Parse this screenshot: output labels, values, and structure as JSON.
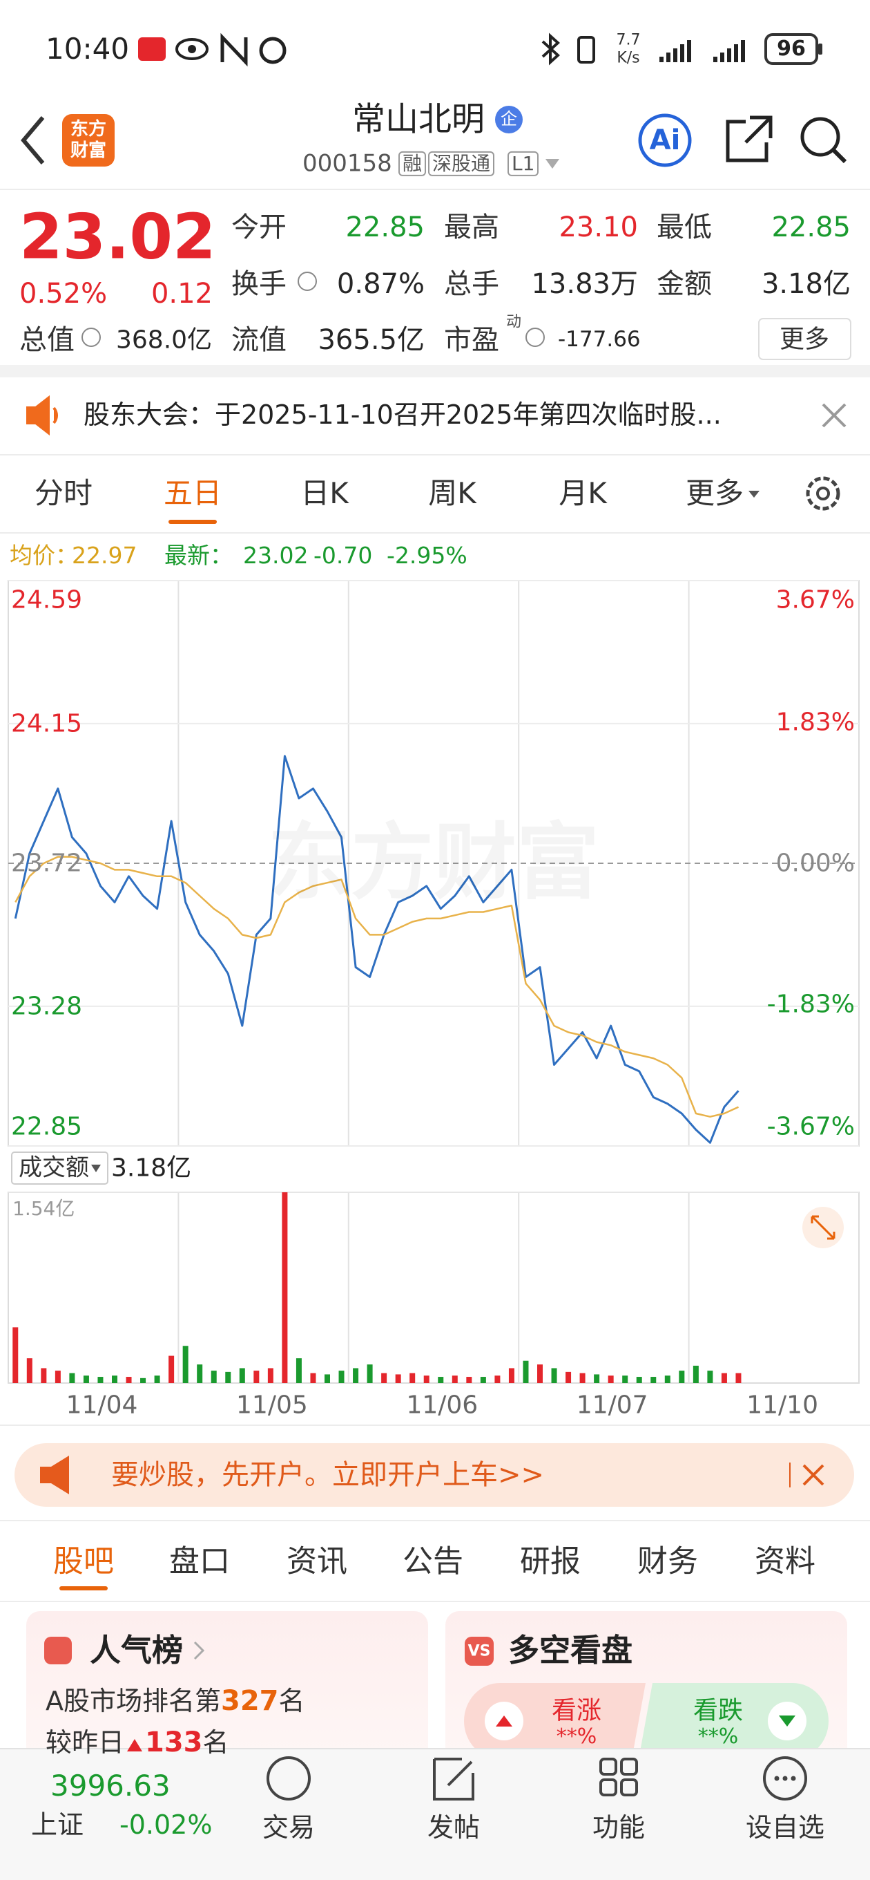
{
  "status_bar": {
    "time": "10:40",
    "speed": "7.7",
    "speed_unit": "K/s",
    "battery": "96"
  },
  "header": {
    "logo": "东方财富",
    "title": "常山北明",
    "badge": "企",
    "code": "000158",
    "tags": [
      "融",
      "深股通",
      "L1"
    ],
    "ai": "Ai"
  },
  "quote": {
    "price": "23.02",
    "change_pct": "0.52%",
    "change": "0.12",
    "fields": [
      {
        "label": "今开",
        "value": "22.85"
      },
      {
        "label": "最高",
        "value": "23.10"
      },
      {
        "label": "最低",
        "value": "22.85"
      },
      {
        "label": "换手",
        "value": "0.87%"
      },
      {
        "label": "总手",
        "value": "13.83万"
      },
      {
        "label": "金额",
        "value": "3.18亿"
      },
      {
        "label": "总值",
        "value": "368.0亿"
      },
      {
        "label": "流值",
        "value": "365.5亿"
      },
      {
        "label": "市盈",
        "sup": "动",
        "value": "-177.66"
      }
    ],
    "more": "更多"
  },
  "notice": "股东大会：于2025-11-10召开2025年第四次临时股...",
  "chart_tabs": [
    "分时",
    "五日",
    "日K",
    "周K",
    "月K",
    "更多"
  ],
  "chart_info": {
    "avg_label": "均价：",
    "avg": "22.97",
    "last_label": "最新：",
    "last": "23.02",
    "change": "-0.70",
    "change_pct": "-2.95%"
  },
  "chart_data": [
    {
      "type": "line",
      "watermark": "东方财富",
      "days": [
        "11/04",
        "11/05",
        "11/06",
        "11/07",
        "11/10"
      ],
      "ylim": [
        22.85,
        24.59
      ],
      "yticks": [
        24.59,
        24.15,
        23.72,
        23.28,
        22.85
      ],
      "y2lim": [
        -3.67,
        3.67
      ],
      "y2ticks": [
        {
          "value": 3.67,
          "label": "3.67%"
        },
        {
          "value": 1.83,
          "label": "1.83%"
        },
        {
          "value": 0,
          "label": "0.00%"
        },
        {
          "value": -1.83,
          "label": "-1.83%"
        },
        {
          "value": -3.67,
          "label": "-3.67%"
        }
      ],
      "grid": true,
      "series": [
        {
          "color": "#2f6fc0",
          "values": [
            23.55,
            23.75,
            23.85,
            23.95,
            23.8,
            23.75,
            23.65,
            23.6,
            23.68,
            23.62,
            23.58,
            23.85,
            23.6,
            23.5,
            23.45,
            23.38,
            23.22,
            23.5,
            23.55,
            24.05,
            23.92,
            23.95,
            23.88,
            23.8,
            23.4,
            23.37,
            23.5,
            23.6,
            23.62,
            23.65,
            23.58,
            23.62,
            23.68,
            23.6,
            23.65,
            23.7,
            23.37,
            23.4,
            23.1,
            23.15,
            23.2,
            23.12,
            23.22,
            23.1,
            23.08,
            23.0,
            22.98,
            22.95,
            22.9,
            22.86,
            22.97,
            23.02,
            null,
            null,
            null,
            null,
            null,
            null,
            null,
            null
          ]
        },
        {
          "color": "#e8b24a",
          "values": [
            23.6,
            23.68,
            23.72,
            23.74,
            23.74,
            23.73,
            23.72,
            23.7,
            23.7,
            23.69,
            23.68,
            23.68,
            23.66,
            23.62,
            23.58,
            23.55,
            23.5,
            23.49,
            23.5,
            23.6,
            23.63,
            23.65,
            23.66,
            23.67,
            23.55,
            23.5,
            23.5,
            23.52,
            23.54,
            23.55,
            23.55,
            23.56,
            23.57,
            23.57,
            23.58,
            23.59,
            23.35,
            23.3,
            23.22,
            23.2,
            23.19,
            23.17,
            23.16,
            23.14,
            23.13,
            23.12,
            23.1,
            23.06,
            22.95,
            22.94,
            22.95,
            22.97,
            null,
            null,
            null,
            null,
            null,
            null,
            null,
            null
          ]
        }
      ]
    },
    {
      "type": "bar",
      "ylim": [
        0,
        1.54
      ],
      "yticks": [
        {
          "value": 1.54,
          "label": "1.54亿"
        }
      ],
      "up_color": "#e4262c",
      "down_color": "#1a9a2e",
      "series": [
        {
          "values": [
            0.45,
            0.2,
            0.12,
            0.1,
            0.08,
            0.06,
            0.05,
            0.06,
            0.05,
            0.04,
            0.06,
            0.22,
            0.3,
            0.15,
            0.1,
            0.09,
            0.12,
            0.1,
            0.12,
            1.54,
            0.2,
            0.08,
            0.07,
            0.1,
            0.12,
            0.15,
            0.08,
            0.07,
            0.08,
            0.06,
            0.05,
            0.06,
            0.05,
            0.05,
            0.06,
            0.12,
            0.18,
            0.15,
            0.12,
            0.09,
            0.08,
            0.07,
            0.06,
            0.06,
            0.05,
            0.05,
            0.06,
            0.1,
            0.14,
            0.1,
            0.08,
            0.08,
            null,
            null,
            null,
            null,
            null,
            null,
            null,
            null
          ]
        }
      ]
    }
  ],
  "volume_header": {
    "label": "成交额",
    "value": "3.18亿"
  },
  "ad": "要炒股，先开户。立即开户上车>>",
  "content_tabs": [
    "股吧",
    "盘口",
    "资讯",
    "公告",
    "研报",
    "财务",
    "资料"
  ],
  "cards": {
    "popularity": {
      "title": "人气榜",
      "rank_prefix": "A股市场排名第",
      "rank": "327",
      "rank_suffix": "名",
      "change_prefix": "较昨日",
      "change": "133",
      "change_suffix": "名"
    },
    "sentiment": {
      "icon": "VS",
      "title": "多空看盘",
      "bull": "看涨",
      "bull_pct": "**%",
      "bear": "看跌",
      "bear_pct": "**%"
    }
  },
  "bottom_nav": {
    "index_value": "3996.63",
    "index_name": "上证",
    "index_change": "-0.02%",
    "items": [
      "交易",
      "发帖",
      "功能",
      "设自选"
    ]
  }
}
